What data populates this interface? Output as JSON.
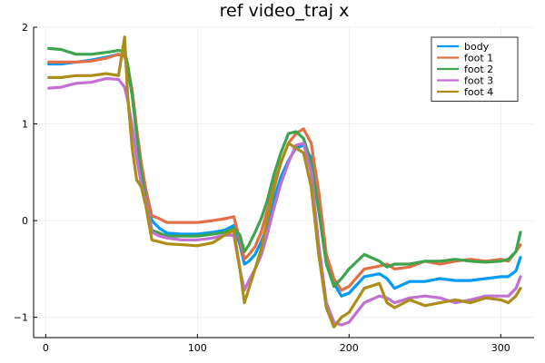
{
  "chart_data": {
    "type": "line",
    "title": "ref video_traj x",
    "xlabel": "",
    "ylabel": "",
    "xlim": [
      -8,
      322
    ],
    "ylim": [
      -1.21,
      2.0
    ],
    "xticks": [
      0,
      100,
      200,
      300
    ],
    "yticks": [
      -1,
      0,
      1,
      2
    ],
    "xtick_labels": [
      "0",
      "100",
      "200",
      "300"
    ],
    "ytick_labels": [
      "−1",
      "0",
      "1",
      "2"
    ],
    "grid": true,
    "legend_position": "top-right",
    "series": [
      {
        "name": "body",
        "color": "#009AFA",
        "x": [
          2,
          10,
          20,
          30,
          40,
          48,
          52,
          54,
          57,
          60,
          63,
          66,
          70,
          75,
          80,
          90,
          100,
          110,
          118,
          124,
          128,
          131,
          134,
          138,
          142,
          146,
          150,
          155,
          160,
          165,
          170,
          175,
          180,
          185,
          190,
          195,
          200,
          210,
          220,
          225,
          230,
          240,
          250,
          260,
          270,
          280,
          290,
          300,
          305,
          310,
          313
        ],
        "y": [
          1.62,
          1.62,
          1.64,
          1.66,
          1.69,
          1.72,
          1.7,
          1.58,
          1.3,
          0.9,
          0.55,
          0.3,
          0.0,
          -0.08,
          -0.13,
          -0.14,
          -0.14,
          -0.12,
          -0.1,
          -0.05,
          -0.25,
          -0.45,
          -0.42,
          -0.35,
          -0.22,
          -0.05,
          0.2,
          0.45,
          0.62,
          0.75,
          0.78,
          0.65,
          0.2,
          -0.4,
          -0.65,
          -0.78,
          -0.75,
          -0.58,
          -0.55,
          -0.6,
          -0.7,
          -0.63,
          -0.63,
          -0.6,
          -0.62,
          -0.62,
          -0.6,
          -0.58,
          -0.58,
          -0.52,
          -0.38
        ]
      },
      {
        "name": "foot 1",
        "color": "#E26F46",
        "x": [
          2,
          10,
          20,
          30,
          40,
          48,
          52,
          54,
          57,
          60,
          63,
          66,
          70,
          75,
          80,
          90,
          100,
          110,
          118,
          124,
          128,
          131,
          134,
          138,
          142,
          146,
          150,
          155,
          160,
          165,
          170,
          175,
          180,
          185,
          190,
          195,
          200,
          210,
          220,
          225,
          230,
          240,
          250,
          260,
          270,
          280,
          290,
          300,
          305,
          310,
          313
        ],
        "y": [
          1.64,
          1.64,
          1.64,
          1.65,
          1.68,
          1.72,
          1.7,
          1.6,
          1.35,
          0.95,
          0.6,
          0.32,
          0.05,
          0.02,
          -0.02,
          -0.02,
          -0.02,
          0.0,
          0.02,
          0.04,
          -0.2,
          -0.4,
          -0.35,
          -0.27,
          -0.12,
          0.1,
          0.35,
          0.6,
          0.8,
          0.9,
          0.95,
          0.8,
          0.3,
          -0.35,
          -0.6,
          -0.72,
          -0.68,
          -0.5,
          -0.47,
          -0.45,
          -0.5,
          -0.48,
          -0.42,
          -0.45,
          -0.42,
          -0.4,
          -0.42,
          -0.4,
          -0.42,
          -0.32,
          -0.25
        ]
      },
      {
        "name": "foot 2",
        "color": "#3DA44D",
        "x": [
          2,
          10,
          20,
          30,
          40,
          48,
          52,
          54,
          57,
          60,
          63,
          66,
          70,
          75,
          80,
          90,
          100,
          110,
          118,
          124,
          128,
          131,
          134,
          138,
          142,
          146,
          150,
          155,
          160,
          165,
          170,
          175,
          180,
          185,
          190,
          195,
          200,
          210,
          220,
          225,
          230,
          240,
          250,
          260,
          270,
          280,
          290,
          300,
          305,
          310,
          313
        ],
        "y": [
          1.78,
          1.77,
          1.72,
          1.72,
          1.74,
          1.76,
          1.75,
          1.62,
          1.3,
          0.88,
          0.5,
          0.22,
          -0.1,
          -0.13,
          -0.16,
          -0.16,
          -0.16,
          -0.14,
          -0.12,
          -0.08,
          -0.15,
          -0.32,
          -0.25,
          -0.12,
          0.02,
          0.2,
          0.45,
          0.7,
          0.9,
          0.92,
          0.85,
          0.6,
          0.1,
          -0.45,
          -0.68,
          -0.6,
          -0.5,
          -0.35,
          -0.42,
          -0.48,
          -0.45,
          -0.45,
          -0.42,
          -0.42,
          -0.4,
          -0.42,
          -0.43,
          -0.42,
          -0.4,
          -0.32,
          -0.12
        ]
      },
      {
        "name": "foot 3",
        "color": "#C271D2",
        "x": [
          2,
          10,
          20,
          30,
          40,
          48,
          52,
          54,
          57,
          60,
          63,
          66,
          70,
          75,
          80,
          90,
          100,
          110,
          118,
          124,
          128,
          131,
          134,
          138,
          142,
          146,
          150,
          155,
          160,
          165,
          170,
          175,
          180,
          185,
          190,
          195,
          200,
          210,
          220,
          225,
          230,
          240,
          250,
          260,
          270,
          280,
          290,
          300,
          305,
          310,
          313
        ],
        "y": [
          1.37,
          1.38,
          1.42,
          1.43,
          1.47,
          1.46,
          1.38,
          1.25,
          0.98,
          0.65,
          0.38,
          0.2,
          -0.12,
          -0.16,
          -0.18,
          -0.2,
          -0.2,
          -0.18,
          -0.15,
          -0.15,
          -0.5,
          -0.72,
          -0.62,
          -0.5,
          -0.36,
          -0.15,
          0.1,
          0.38,
          0.6,
          0.78,
          0.8,
          0.5,
          -0.25,
          -0.85,
          -1.05,
          -1.08,
          -1.05,
          -0.85,
          -0.78,
          -0.8,
          -0.85,
          -0.8,
          -0.78,
          -0.8,
          -0.85,
          -0.82,
          -0.78,
          -0.78,
          -0.78,
          -0.7,
          -0.58
        ]
      },
      {
        "name": "foot 4",
        "color": "#AC8D18",
        "x": [
          2,
          10,
          20,
          30,
          40,
          48,
          52,
          54,
          57,
          60,
          63,
          66,
          70,
          75,
          80,
          90,
          100,
          110,
          118,
          124,
          128,
          131,
          134,
          138,
          142,
          146,
          150,
          155,
          160,
          165,
          170,
          175,
          180,
          185,
          190,
          195,
          200,
          210,
          220,
          225,
          230,
          240,
          250,
          260,
          270,
          280,
          290,
          300,
          305,
          310,
          313
        ],
        "y": [
          1.48,
          1.48,
          1.5,
          1.5,
          1.52,
          1.5,
          1.9,
          1.3,
          0.75,
          0.42,
          0.35,
          0.15,
          -0.2,
          -0.22,
          -0.24,
          -0.25,
          -0.26,
          -0.23,
          -0.15,
          -0.1,
          -0.5,
          -0.85,
          -0.7,
          -0.5,
          -0.3,
          0.0,
          0.3,
          0.6,
          0.8,
          0.75,
          0.7,
          0.35,
          -0.35,
          -0.9,
          -1.1,
          -1.0,
          -0.95,
          -0.7,
          -0.65,
          -0.85,
          -0.9,
          -0.82,
          -0.88,
          -0.85,
          -0.82,
          -0.85,
          -0.8,
          -0.82,
          -0.85,
          -0.78,
          -0.7
        ]
      }
    ]
  }
}
